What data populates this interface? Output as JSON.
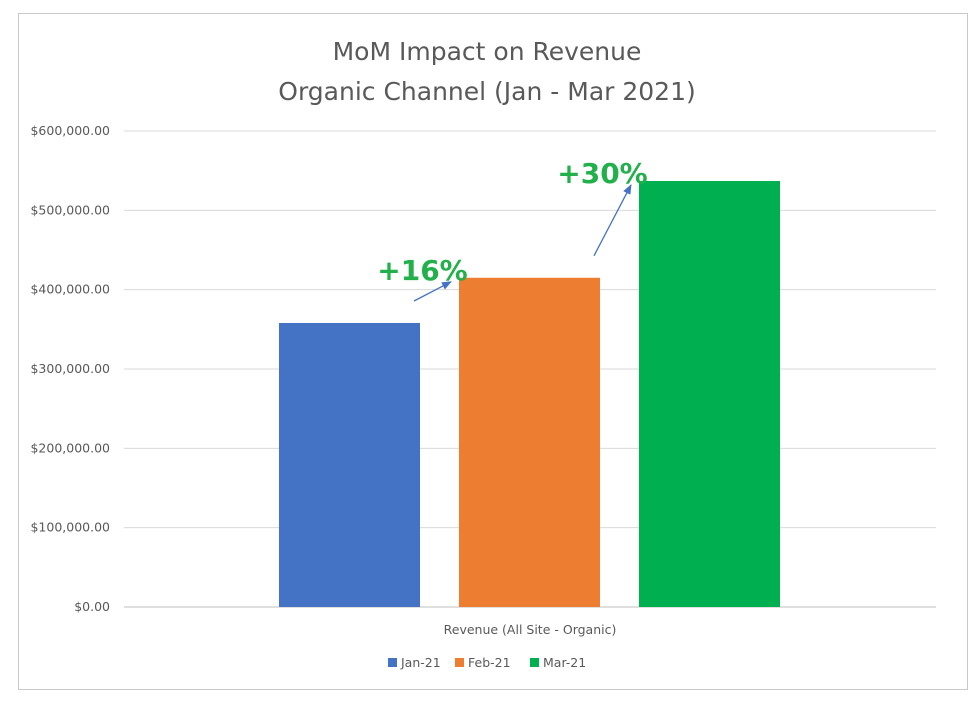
{
  "chart_data": {
    "type": "bar",
    "title_lines": [
      "MoM Impact on Revenue",
      "Organic Channel (Jan - Mar 2021)"
    ],
    "categories": [
      "Revenue (All Site - Organic)"
    ],
    "series": [
      {
        "name": "Jan-21",
        "color": "#4472c4",
        "values": [
          358000
        ]
      },
      {
        "name": "Feb-21",
        "color": "#ed7d31",
        "values": [
          415000
        ]
      },
      {
        "name": "Mar-21",
        "color": "#00b050",
        "values": [
          537000
        ]
      }
    ],
    "ylim": [
      0,
      600000
    ],
    "yticks": [
      0,
      100000,
      200000,
      300000,
      400000,
      500000,
      600000
    ],
    "ytick_labels": [
      "$0.00",
      "$100,000.00",
      "$200,000.00",
      "$300,000.00",
      "$400,000.00",
      "$500,000.00",
      "$600,000.00"
    ],
    "grid": true,
    "legend_position": "bottom",
    "annotations": [
      {
        "text": "+16%",
        "from_series": 0,
        "to_series": 1
      },
      {
        "text": "+30%",
        "from_series": 1,
        "to_series": 2
      }
    ],
    "annotation_color": "#22b04b",
    "arrow_color": "#4472c4"
  }
}
